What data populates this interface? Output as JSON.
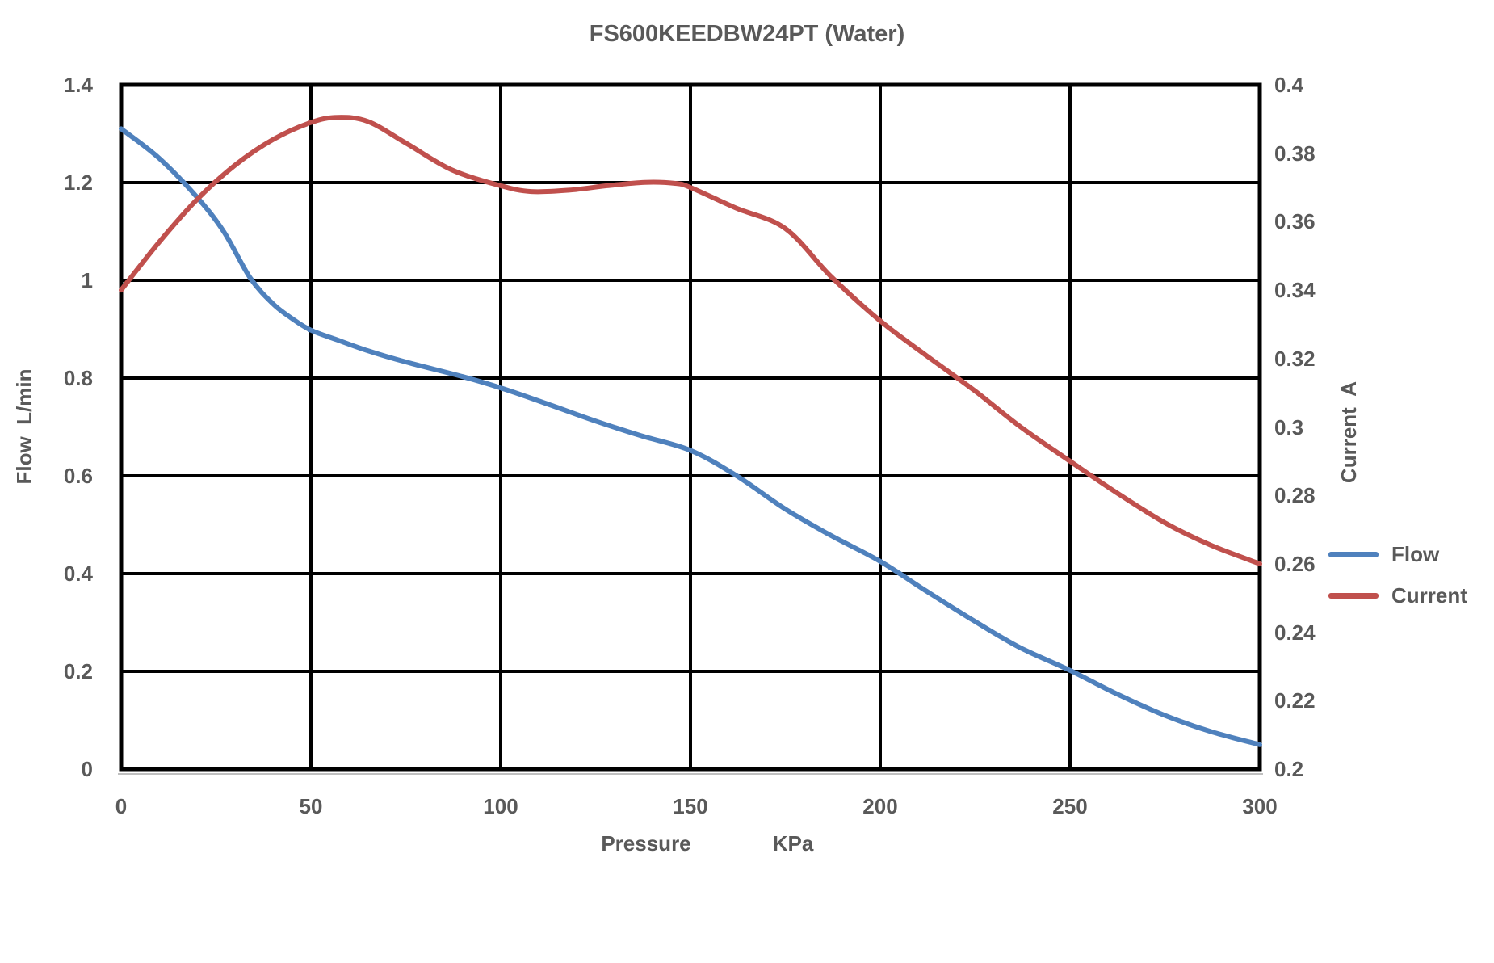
{
  "colors": {
    "flow_line": "#4F81BD",
    "current_line": "#C0504D",
    "text": "#595959",
    "grid": "#000000",
    "axis_baseline": "#BFBFBF",
    "background": "#FFFFFF"
  },
  "chart_data": {
    "type": "line",
    "title": "FS600KEEDBW24PT (Water)",
    "xlabel": "Pressure",
    "xlabel_unit": "KPa",
    "ylabel_left": "Flow  L/min",
    "ylabel_right": "Current  A",
    "x_range": [
      0,
      300
    ],
    "y_left_range": [
      0,
      1.4
    ],
    "y_right_range": [
      0.2,
      0.4
    ],
    "x_tick_labels": [
      "0",
      "50",
      "100",
      "150",
      "200",
      "250",
      "300"
    ],
    "y_left_tick_labels": [
      "1.4",
      "1.2",
      "1",
      "0.8",
      "0.6",
      "0.4",
      "0.2",
      "0"
    ],
    "y_right_tick_labels": [
      "0.4",
      "0.38",
      "0.36",
      "0.34",
      "0.32",
      "0.3",
      "0.28",
      "0.26",
      "0.24",
      "0.22",
      "0.2"
    ],
    "grid": true,
    "legend_position": "right",
    "series": [
      {
        "name": "Flow",
        "axis": "left",
        "units": "L/min",
        "color": "#4F81BD",
        "points": [
          [
            0,
            1.31
          ],
          [
            10,
            1.25
          ],
          [
            20,
            1.17
          ],
          [
            27,
            1.1
          ],
          [
            34,
            1.005
          ],
          [
            40,
            0.952
          ],
          [
            45,
            0.922
          ],
          [
            50,
            0.898
          ],
          [
            57,
            0.878
          ],
          [
            65,
            0.856
          ],
          [
            75,
            0.833
          ],
          [
            90,
            0.803
          ],
          [
            100,
            0.78
          ],
          [
            112,
            0.748
          ],
          [
            125,
            0.712
          ],
          [
            137,
            0.682
          ],
          [
            150,
            0.652
          ],
          [
            162,
            0.601
          ],
          [
            175,
            0.532
          ],
          [
            187,
            0.478
          ],
          [
            200,
            0.425
          ],
          [
            212,
            0.365
          ],
          [
            225,
            0.302
          ],
          [
            237,
            0.248
          ],
          [
            250,
            0.202
          ],
          [
            262,
            0.155
          ],
          [
            275,
            0.11
          ],
          [
            287,
            0.077
          ],
          [
            300,
            0.05
          ]
        ]
      },
      {
        "name": "Current",
        "axis": "right",
        "units": "A",
        "color": "#C0504D",
        "points": [
          [
            0,
            0.34
          ],
          [
            10,
            0.354
          ],
          [
            20,
            0.3665
          ],
          [
            30,
            0.3765
          ],
          [
            40,
            0.384
          ],
          [
            50,
            0.389
          ],
          [
            57,
            0.3905
          ],
          [
            65,
            0.3893
          ],
          [
            75,
            0.383
          ],
          [
            87,
            0.3752
          ],
          [
            100,
            0.3705
          ],
          [
            108,
            0.3688
          ],
          [
            118,
            0.3692
          ],
          [
            128,
            0.3705
          ],
          [
            138,
            0.3715
          ],
          [
            146,
            0.3712
          ],
          [
            150,
            0.37
          ],
          [
            162,
            0.364
          ],
          [
            175,
            0.358
          ],
          [
            187,
            0.344
          ],
          [
            200,
            0.331
          ],
          [
            212,
            0.321
          ],
          [
            225,
            0.3105
          ],
          [
            237,
            0.3
          ],
          [
            250,
            0.29
          ],
          [
            262,
            0.281
          ],
          [
            275,
            0.272
          ],
          [
            287,
            0.2655
          ],
          [
            300,
            0.26
          ]
        ]
      }
    ]
  }
}
